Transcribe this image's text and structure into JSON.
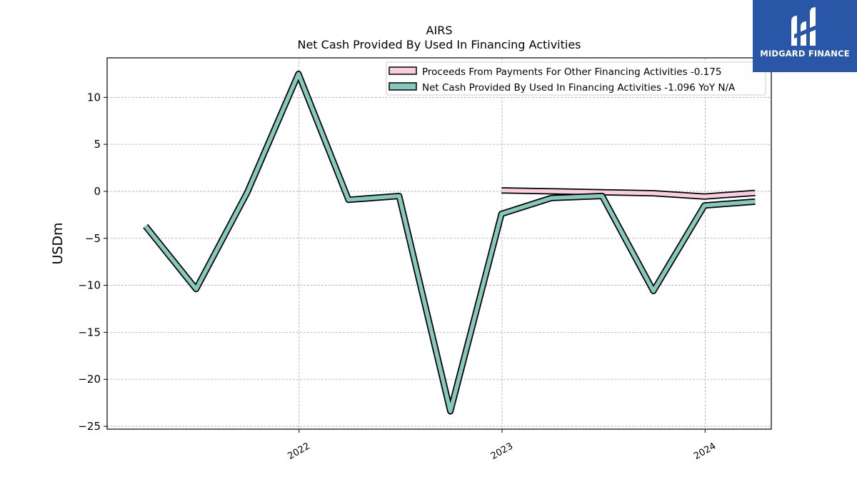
{
  "chart_data": {
    "type": "line",
    "title": "AIRS",
    "subtitle": "Net Cash Provided By Used In Financing Activities",
    "ylabel": "USDm",
    "xlabel": "",
    "ylim": [
      -25.3,
      14.2
    ],
    "xlim": [
      "2021-01-21",
      "2024-04-29"
    ],
    "yticks": [
      10,
      5,
      0,
      -5,
      -10,
      -15,
      -20,
      -25
    ],
    "ytick_labels": [
      "10",
      "5",
      "0",
      "−5",
      "−10",
      "−15",
      "−20",
      "−25"
    ],
    "xticks": [
      "2022-01-01",
      "2023-01-01",
      "2024-01-01"
    ],
    "xtick_labels": [
      "2022",
      "2023",
      "2024"
    ],
    "grid": true,
    "legend_position": "top-right",
    "series": [
      {
        "name": "Proceeds From Payments For Other Financing Activities",
        "legend_label": "Proceeds From Payments For Other Financing Activities  -0.175",
        "color": "#f9cfe0",
        "x": [
          "2022-12-31",
          "2023-03-31",
          "2023-06-30",
          "2023-09-30",
          "2023-12-31",
          "2024-03-31"
        ],
        "y": [
          0.1,
          0.0,
          -0.1,
          -0.2,
          -0.55,
          -0.175
        ]
      },
      {
        "name": "Net Cash Provided By Used In Financing Activities",
        "legend_label": "Net Cash Provided By Used In Financing Activities  -1.096 YoY N/A",
        "color": "#86c9bc",
        "x": [
          "2021-03-31",
          "2021-06-30",
          "2021-09-30",
          "2021-12-31",
          "2022-03-31",
          "2022-06-30",
          "2022-09-30",
          "2022-12-31",
          "2023-03-31",
          "2023-06-30",
          "2023-09-30",
          "2023-12-31",
          "2024-03-31"
        ],
        "y": [
          -3.7,
          -10.4,
          -0.1,
          12.5,
          -0.9,
          -0.5,
          -23.4,
          -2.4,
          -0.7,
          -0.5,
          -10.6,
          -1.5,
          -1.096
        ]
      }
    ]
  },
  "branding": {
    "logo_text": "MIDGARD FINANCE",
    "logo_color": "#2a56a8"
  }
}
